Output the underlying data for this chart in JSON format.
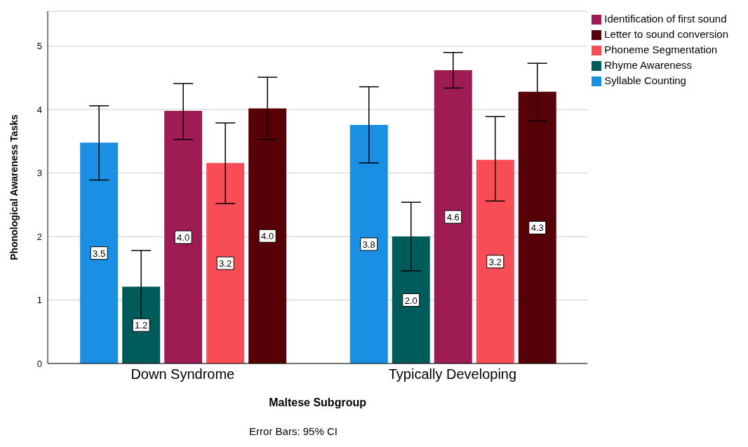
{
  "chart_data": {
    "type": "bar",
    "xlabel": "Maltese Subgroup",
    "ylabel": "Phonological Awareness Tasks",
    "categories": [
      "Down Syndrome",
      "Typically Developing"
    ],
    "series": [
      {
        "name": "Syllable Counting",
        "color": "#1a8fe3",
        "values": [
          3.48,
          3.76
        ],
        "errors": [
          [
            2.89,
            4.06
          ],
          [
            3.16,
            4.36
          ]
        ],
        "value_labels": [
          "3.5",
          "3.8"
        ]
      },
      {
        "name": "Rhyme Awareness",
        "color": "#005c5a",
        "values": [
          1.21,
          2.0
        ],
        "errors": [
          [
            0.65,
            1.78
          ],
          [
            1.46,
            2.54
          ]
        ],
        "value_labels": [
          "1.2",
          "2.0"
        ]
      },
      {
        "name": "Identification of first sound",
        "color": "#9e1b54",
        "values": [
          3.98,
          4.62
        ],
        "errors": [
          [
            3.53,
            4.41
          ],
          [
            4.34,
            4.9
          ]
        ],
        "value_labels": [
          "4.0",
          "4.6"
        ]
      },
      {
        "name": "Phoneme Segmentation",
        "color": "#f84c57",
        "values": [
          3.16,
          3.21
        ],
        "errors": [
          [
            2.52,
            3.79
          ],
          [
            2.56,
            3.89
          ]
        ],
        "value_labels": [
          "3.2",
          "3.2"
        ]
      },
      {
        "name": "Letter to sound conversion",
        "color": "#560007",
        "values": [
          4.02,
          4.28
        ],
        "errors": [
          [
            3.53,
            4.51
          ],
          [
            3.82,
            4.73
          ]
        ],
        "value_labels": [
          "4.0",
          "4.3"
        ]
      }
    ],
    "ylim": [
      0,
      5.55
    ],
    "yticks": [
      0,
      1,
      2,
      3,
      4,
      5
    ],
    "grid": "y",
    "legend": "top right",
    "annotations": [
      "Error Bars: 95% CI"
    ]
  }
}
